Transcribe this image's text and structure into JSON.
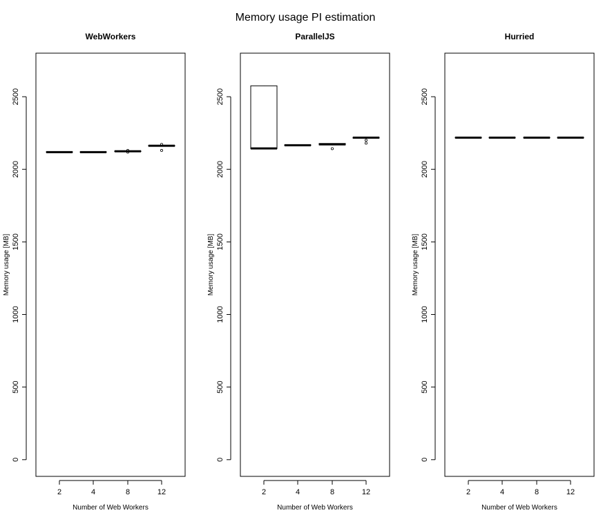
{
  "figure": {
    "title": "Memory usage PI estimation"
  },
  "chart_data": [
    {
      "type": "box",
      "title": "WebWorkers",
      "xlabel": "Number of Web Workers",
      "ylabel": "Memory usage [MB]",
      "categories": [
        "2",
        "4",
        "8",
        "12"
      ],
      "yticks": [
        0,
        500,
        1000,
        1500,
        2000,
        2500
      ],
      "ylim": [
        -115,
        2800
      ],
      "boxes": [
        {
          "category": "2",
          "min": 2118,
          "q1": 2118,
          "median": 2118,
          "q3": 2120,
          "max": 2120,
          "outliers": []
        },
        {
          "category": "4",
          "min": 2118,
          "q1": 2118,
          "median": 2118,
          "q3": 2120,
          "max": 2120,
          "outliers": []
        },
        {
          "category": "8",
          "min": 2122,
          "q1": 2122,
          "median": 2124,
          "q3": 2126,
          "max": 2126,
          "outliers": [
            2118,
            2130
          ]
        },
        {
          "category": "12",
          "min": 2160,
          "q1": 2160,
          "median": 2162,
          "q3": 2164,
          "max": 2164,
          "outliers": [
            2130,
            2172
          ]
        }
      ]
    },
    {
      "type": "box",
      "title": "ParallelJS",
      "xlabel": "Number of Web Workers",
      "ylabel": "Memory usage [MB]",
      "categories": [
        "2",
        "4",
        "8",
        "12"
      ],
      "yticks": [
        0,
        500,
        1000,
        1500,
        2000,
        2500
      ],
      "ylim": [
        -115,
        2800
      ],
      "boxes": [
        {
          "category": "2",
          "min": 2142,
          "q1": 2142,
          "median": 2144,
          "q3": 2575,
          "max": 2575,
          "outliers": []
        },
        {
          "category": "4",
          "min": 2164,
          "q1": 2164,
          "median": 2166,
          "q3": 2168,
          "max": 2168,
          "outliers": []
        },
        {
          "category": "8",
          "min": 2168,
          "q1": 2168,
          "median": 2172,
          "q3": 2178,
          "max": 2178,
          "outliers": [
            2142
          ]
        },
        {
          "category": "12",
          "min": 2215,
          "q1": 2215,
          "median": 2218,
          "q3": 2220,
          "max": 2220,
          "outliers": [
            2180,
            2200
          ]
        }
      ]
    },
    {
      "type": "box",
      "title": "Hurried",
      "xlabel": "Number of Web Workers",
      "ylabel": "Memory usage [MB]",
      "categories": [
        "2",
        "4",
        "8",
        "12"
      ],
      "yticks": [
        0,
        500,
        1000,
        1500,
        2000,
        2500
      ],
      "ylim": [
        -115,
        2800
      ],
      "boxes": [
        {
          "category": "2",
          "min": 2216,
          "q1": 2216,
          "median": 2218,
          "q3": 2220,
          "max": 2220,
          "outliers": []
        },
        {
          "category": "4",
          "min": 2216,
          "q1": 2216,
          "median": 2218,
          "q3": 2220,
          "max": 2220,
          "outliers": []
        },
        {
          "category": "8",
          "min": 2216,
          "q1": 2216,
          "median": 2218,
          "q3": 2220,
          "max": 2220,
          "outliers": []
        },
        {
          "category": "12",
          "min": 2216,
          "q1": 2216,
          "median": 2218,
          "q3": 2220,
          "max": 2220,
          "outliers": []
        }
      ]
    }
  ]
}
